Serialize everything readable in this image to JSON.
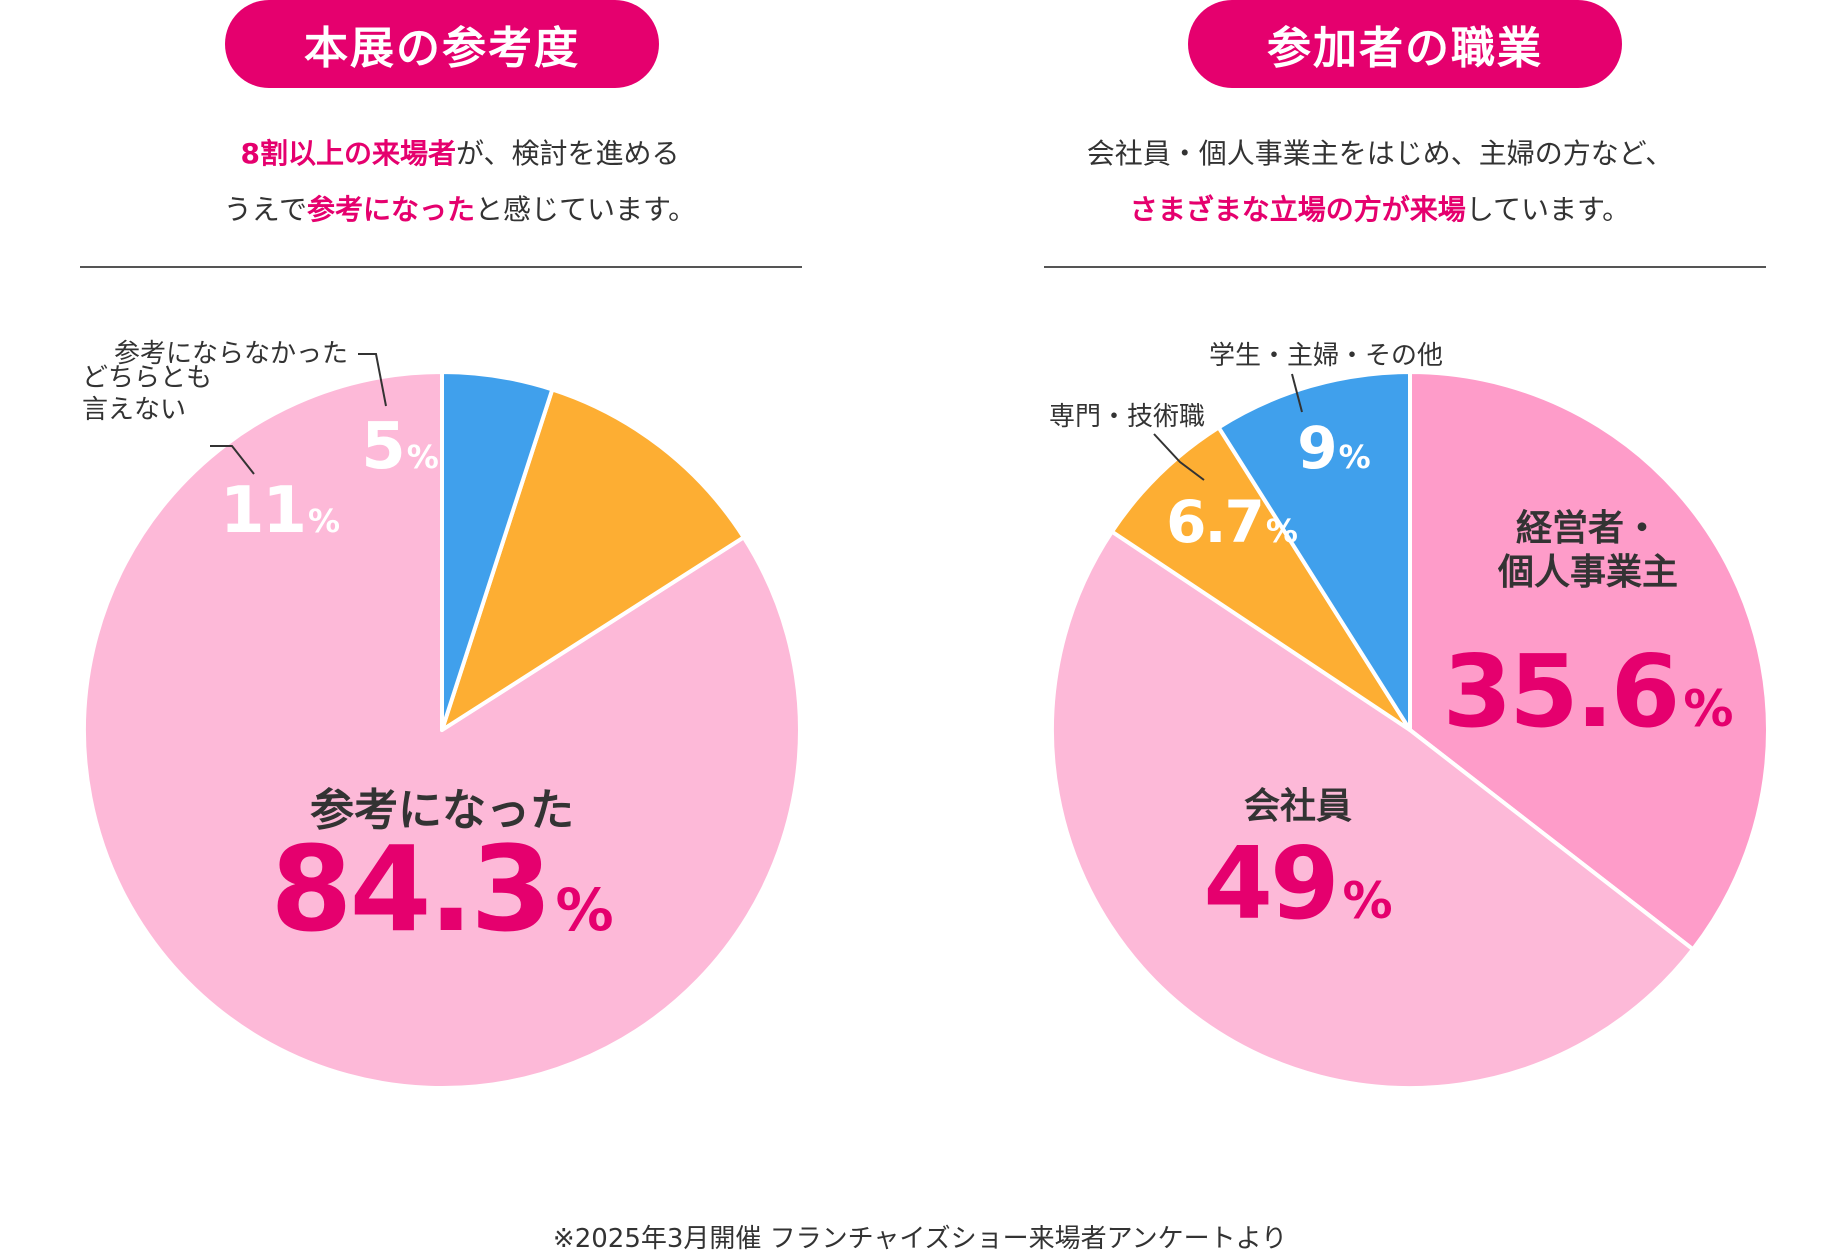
{
  "left": {
    "title": "本展の参考度",
    "description": {
      "line1": [
        {
          "text": "8割以上の来場者",
          "hl": true
        },
        {
          "text": "が、検討を進める",
          "hl": false
        }
      ],
      "line2": [
        {
          "text": "うえで",
          "hl": false
        },
        {
          "text": "参考になった",
          "hl": true
        },
        {
          "text": "と感じています。",
          "hl": false
        }
      ]
    }
  },
  "right": {
    "title": "参加者の職業",
    "description": {
      "line1": [
        {
          "text": "会社員・個人事業主をはじめ、主婦の方など、",
          "hl": false
        }
      ],
      "line2": [
        {
          "text": "さまざまな立場の方が来場",
          "hl": true
        },
        {
          "text": "しています。",
          "hl": false
        }
      ]
    }
  },
  "footnote": "※2025年3月開催 フランチャイズショー来場者アンケートより",
  "colors": {
    "accent": "#e5006e",
    "pink_light": "#fdb9d8",
    "pink_mid": "#fe9cc9",
    "orange": "#fdae33",
    "blue": "#40a0ec",
    "text": "#333333"
  },
  "chart_data": [
    {
      "type": "pie",
      "title": "本展の参考度",
      "start": "12 o'clock",
      "direction": "counterclockwise",
      "slices": [
        {
          "label": "参考になった",
          "value": 84.3,
          "value_label": "84.3",
          "unit": "%",
          "color": "#fdb9d8",
          "label_style": "inside-large"
        },
        {
          "label": "どちらとも\n言えない",
          "value": 11,
          "value_label": "11",
          "unit": "%",
          "color": "#fdae33",
          "label_style": "outside"
        },
        {
          "label": "参考にならなかった",
          "value": 5,
          "value_label": "5",
          "unit": "%",
          "color": "#40a0ec",
          "label_style": "outside"
        }
      ]
    },
    {
      "type": "pie",
      "title": "参加者の職業",
      "start": "12 o'clock",
      "direction": "clockwise",
      "slices": [
        {
          "label": "経営者・\n個人事業主",
          "value": 35.6,
          "value_label": "35.6",
          "unit": "%",
          "color": "#fe9cc9",
          "label_style": "inside-large"
        },
        {
          "label": "会社員",
          "value": 49,
          "value_label": "49",
          "unit": "%",
          "color": "#fdb9d8",
          "label_style": "inside-large"
        },
        {
          "label": "専門・技術職",
          "value": 6.7,
          "value_label": "6.7",
          "unit": "%",
          "color": "#fdae33",
          "label_style": "outside"
        },
        {
          "label": "学生・主婦・その他",
          "value": 9,
          "value_label": "9",
          "unit": "%",
          "color": "#40a0ec",
          "label_style": "outside"
        }
      ]
    }
  ]
}
